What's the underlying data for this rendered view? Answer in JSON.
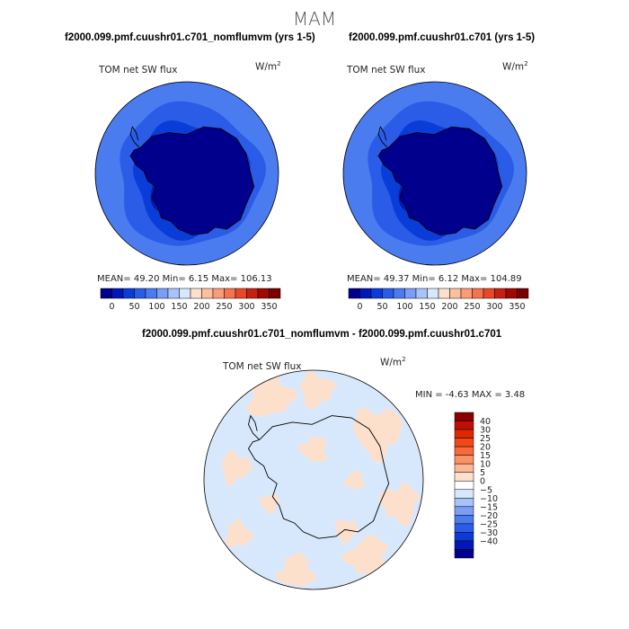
{
  "header": {
    "season": "MAM"
  },
  "panels": [
    {
      "title": "f2000.099.pmf.cuushr01.c701_nomflumvm (yrs 1-5)",
      "variable": "TOM net SW flux",
      "units": "W/m2",
      "stats": "MEAN=  49.20  Min=   6.15  Max= 106.13"
    },
    {
      "title": "f2000.099.pmf.cuushr01.c701 (yrs 1-5)",
      "variable": "TOM net SW flux",
      "units": "W/m2",
      "stats": "MEAN=  49.37  Min=   6.12  Max= 104.89"
    },
    {
      "title": "f2000.099.pmf.cuushr01.c701_nomflumvm - f2000.099.pmf.cuushr01.c701",
      "variable": "TOM net SW flux",
      "units": "W/m2",
      "stats": "MIN =   -4.63 MAX =   3.48"
    }
  ],
  "chart_data": [
    {
      "type": "heatmap",
      "title": "f2000.099.pmf.cuushr01.c701_nomflumvm (yrs 1-5)",
      "projection": "south polar stereographic",
      "variable": "TOM net SW flux",
      "units": "W/m2",
      "colorbar": {
        "orientation": "horizontal",
        "tick_labels": [
          "0",
          "50",
          "100",
          "150",
          "200",
          "250",
          "300",
          "350"
        ],
        "colors": [
          "#00008c",
          "#0018b8",
          "#0a3cd8",
          "#2a5ce8",
          "#4a7cf0",
          "#7a9ef5",
          "#a8c2fa",
          "#d8e8fc",
          "#fde0cc",
          "#fcc0a0",
          "#fa9c78",
          "#f57450",
          "#e84828",
          "#c82010",
          "#a00800",
          "#780000"
        ]
      },
      "stats": {
        "mean": 49.2,
        "min": 6.15,
        "max": 106.13
      }
    },
    {
      "type": "heatmap",
      "title": "f2000.099.pmf.cuushr01.c701 (yrs 1-5)",
      "projection": "south polar stereographic",
      "variable": "TOM net SW flux",
      "units": "W/m2",
      "colorbar": {
        "orientation": "horizontal",
        "tick_labels": [
          "0",
          "50",
          "100",
          "150",
          "200",
          "250",
          "300",
          "350"
        ],
        "colors": [
          "#00008c",
          "#0018b8",
          "#0a3cd8",
          "#2a5ce8",
          "#4a7cf0",
          "#7a9ef5",
          "#a8c2fa",
          "#d8e8fc",
          "#fde0cc",
          "#fcc0a0",
          "#fa9c78",
          "#f57450",
          "#e84828",
          "#c82010",
          "#a00800",
          "#780000"
        ]
      },
      "stats": {
        "mean": 49.37,
        "min": 6.12,
        "max": 104.89
      }
    },
    {
      "type": "heatmap",
      "title": "f2000.099.pmf.cuushr01.c701_nomflumvm - f2000.099.pmf.cuushr01.c701",
      "projection": "south polar stereographic",
      "variable": "TOM net SW flux",
      "units": "W/m2",
      "colorbar": {
        "orientation": "vertical",
        "tick_labels": [
          "40",
          "30",
          "25",
          "20",
          "15",
          "10",
          "5",
          "0",
          "−5",
          "−10",
          "−15",
          "−20",
          "−25",
          "−30",
          "−40"
        ],
        "colors": [
          "#8c0000",
          "#c01000",
          "#e02800",
          "#f04818",
          "#f86a3a",
          "#fb9264",
          "#fcb896",
          "#fde0cc",
          "#ffffff",
          "#d8e8fc",
          "#a8c2fa",
          "#7a9ef5",
          "#4a7cf0",
          "#2a5ce8",
          "#0a3cd8",
          "#0018b8",
          "#00008c"
        ]
      },
      "stats": {
        "min": -4.63,
        "max": 3.48
      }
    }
  ]
}
